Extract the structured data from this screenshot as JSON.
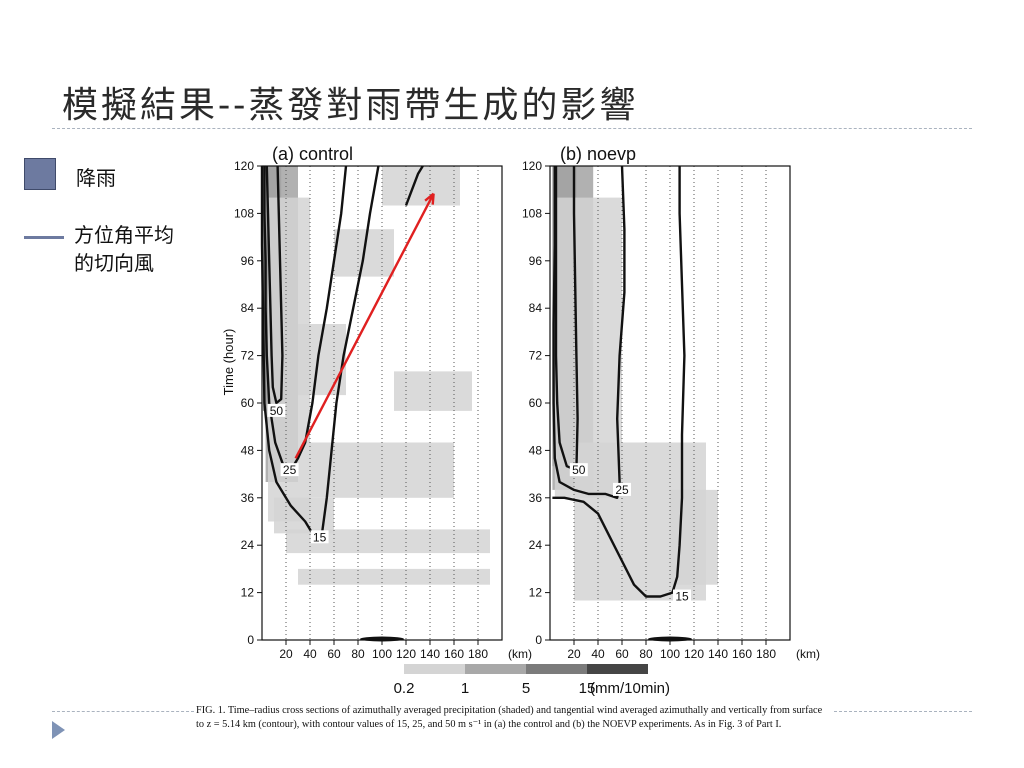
{
  "slide": {
    "title": "模擬結果--蒸發對雨帶生成的影響",
    "legend": {
      "precip_label": "降雨",
      "wind_label_line1": "方位角平均",
      "wind_label_line2": "的切向風",
      "precip_color": "#6d7aa0",
      "wind_color": "#6d7aa0"
    },
    "caption": {
      "prefix": "FIG. 1.",
      "body": "Time–radius cross sections of azimuthally averaged precipitation (shaded) and tangential wind averaged azimuthally and vertically from surface to z = 5.14 km (contour), with contour values of 15, 25, and 50 m s⁻¹ in (a) the control and (b) the NOEVP experiments. As in Fig. 3 of Part I."
    },
    "nav_icon": "next-triangle-icon"
  },
  "chart_data": [
    {
      "type": "heatmap",
      "panel_label": "(a)",
      "title": "control",
      "xlabel": "",
      "ylabel": "Time (hour)",
      "x_unit": "(km)",
      "xlim": [
        0,
        200
      ],
      "ylim": [
        0,
        120
      ],
      "x_ticks": [
        20,
        40,
        60,
        80,
        100,
        120,
        140,
        160,
        180
      ],
      "y_ticks": [
        0,
        12,
        24,
        36,
        48,
        60,
        72,
        84,
        96,
        108,
        120
      ],
      "contour_labels": [
        {
          "value": "50",
          "x": 12,
          "y": 58
        },
        {
          "value": "25",
          "x": 23,
          "y": 43
        },
        {
          "value": "15",
          "x": 48,
          "y": 26
        }
      ],
      "contours": [
        {
          "level": 50,
          "points": [
            [
              4,
              120
            ],
            [
              5,
              108
            ],
            [
              6,
              96
            ],
            [
              7,
              84
            ],
            [
              8,
              72
            ],
            [
              9,
              64
            ],
            [
              12,
              60
            ],
            [
              16,
              61
            ],
            [
              17,
              72
            ],
            [
              16,
              84
            ],
            [
              15,
              96
            ],
            [
              14,
              108
            ],
            [
              13,
              120
            ]
          ]
        },
        {
          "level": 25,
          "points": [
            [
              2,
              120
            ],
            [
              2,
              108
            ],
            [
              3,
              96
            ],
            [
              3,
              84
            ],
            [
              4,
              72
            ],
            [
              6,
              60
            ],
            [
              11,
              50
            ],
            [
              18,
              44
            ],
            [
              24,
              43
            ],
            [
              30,
              46
            ],
            [
              36,
              50
            ],
            [
              42,
              60
            ],
            [
              47,
              72
            ],
            [
              54,
              84
            ],
            [
              60,
              96
            ],
            [
              66,
              108
            ],
            [
              70,
              120
            ]
          ]
        },
        {
          "level": 15,
          "points": [
            [
              0,
              120
            ],
            [
              0,
              100
            ],
            [
              1,
              80
            ],
            [
              2,
              60
            ],
            [
              6,
              48
            ],
            [
              12,
              40
            ],
            [
              24,
              34
            ],
            [
              36,
              30
            ],
            [
              42,
              27
            ],
            [
              50,
              27
            ],
            [
              54,
              36
            ],
            [
              58,
              48
            ],
            [
              62,
              60
            ],
            [
              68,
              72
            ],
            [
              76,
              84
            ],
            [
              84,
              96
            ],
            [
              90,
              108
            ],
            [
              97,
              120
            ]
          ]
        },
        {
          "level": 15,
          "points": [
            [
              120,
              110
            ],
            [
              125,
              114
            ],
            [
              130,
              118
            ],
            [
              134,
              120
            ]
          ]
        }
      ],
      "shading": [
        {
          "band": "heavy",
          "x0": 1,
          "x1": 16,
          "y0": 58,
          "y1": 120
        },
        {
          "band": "mid",
          "x0": 3,
          "x1": 30,
          "y0": 40,
          "y1": 120
        },
        {
          "band": "light",
          "x0": 5,
          "x1": 40,
          "y0": 30,
          "y1": 112
        },
        {
          "band": "light",
          "x0": 30,
          "x1": 70,
          "y0": 62,
          "y1": 80
        },
        {
          "band": "light",
          "x0": 60,
          "x1": 110,
          "y0": 92,
          "y1": 104
        },
        {
          "band": "light",
          "x0": 100,
          "x1": 165,
          "y0": 110,
          "y1": 120
        },
        {
          "band": "light",
          "x0": 110,
          "x1": 175,
          "y0": 58,
          "y1": 68
        },
        {
          "band": "light",
          "x0": 40,
          "x1": 160,
          "y0": 36,
          "y1": 50
        },
        {
          "band": "light",
          "x0": 20,
          "x1": 190,
          "y0": 22,
          "y1": 28
        },
        {
          "band": "light",
          "x0": 30,
          "x1": 190,
          "y0": 14,
          "y1": 18
        },
        {
          "band": "light",
          "x0": 10,
          "x1": 60,
          "y0": 27,
          "y1": 36
        }
      ],
      "annotation_arrow": {
        "from": [
          28,
          46
        ],
        "to": [
          143,
          113
        ],
        "color": "#e02020"
      }
    },
    {
      "type": "heatmap",
      "panel_label": "(b)",
      "title": "noevp",
      "xlabel": "",
      "ylabel": "",
      "x_unit": "(km)",
      "xlim": [
        0,
        200
      ],
      "ylim": [
        0,
        120
      ],
      "x_ticks": [
        20,
        40,
        60,
        80,
        100,
        120,
        140,
        160,
        180
      ],
      "y_ticks": [
        0,
        12,
        24,
        36,
        48,
        60,
        72,
        84,
        96,
        108,
        120
      ],
      "contour_labels": [
        {
          "value": "50",
          "x": 24,
          "y": 43
        },
        {
          "value": "25",
          "x": 60,
          "y": 38
        },
        {
          "value": "15",
          "x": 110,
          "y": 11
        }
      ],
      "contours": [
        {
          "level": 50,
          "points": [
            [
              5,
              120
            ],
            [
              5,
              108
            ],
            [
              5,
              96
            ],
            [
              5,
              84
            ],
            [
              5,
              72
            ],
            [
              6,
              60
            ],
            [
              8,
              50
            ],
            [
              14,
              44
            ],
            [
              22,
              43
            ],
            [
              23,
              56
            ],
            [
              22,
              72
            ],
            [
              21,
              90
            ],
            [
              20,
              108
            ],
            [
              20,
              120
            ]
          ]
        },
        {
          "level": 25,
          "points": [
            [
              4,
              120
            ],
            [
              4,
              100
            ],
            [
              3,
              80
            ],
            [
              3,
              60
            ],
            [
              4,
              46
            ],
            [
              8,
              40
            ],
            [
              20,
              38
            ],
            [
              32,
              37
            ],
            [
              46,
              37
            ],
            [
              56,
              36
            ],
            [
              58,
              40
            ],
            [
              56,
              56
            ],
            [
              58,
              72
            ],
            [
              62,
              88
            ],
            [
              62,
              104
            ],
            [
              60,
              120
            ]
          ]
        },
        {
          "level": 15,
          "points": [
            [
              2,
              36
            ],
            [
              12,
              36
            ],
            [
              28,
              35
            ],
            [
              40,
              32
            ],
            [
              50,
              26
            ],
            [
              60,
              20
            ],
            [
              70,
              14
            ],
            [
              80,
              11
            ],
            [
              92,
              11
            ],
            [
              102,
              12
            ],
            [
              106,
              16
            ],
            [
              108,
              24
            ],
            [
              110,
              36
            ],
            [
              110,
              52
            ],
            [
              112,
              72
            ],
            [
              110,
              90
            ],
            [
              108,
              108
            ],
            [
              108,
              120
            ]
          ]
        }
      ],
      "shading": [
        {
          "band": "heavy",
          "x0": 2,
          "x1": 22,
          "y0": 44,
          "y1": 120
        },
        {
          "band": "mid",
          "x0": 2,
          "x1": 36,
          "y0": 38,
          "y1": 120
        },
        {
          "band": "light",
          "x0": 4,
          "x1": 60,
          "y0": 36,
          "y1": 112
        },
        {
          "band": "light",
          "x0": 20,
          "x1": 130,
          "y0": 10,
          "y1": 50
        },
        {
          "band": "light",
          "x0": 100,
          "x1": 140,
          "y0": 14,
          "y1": 38
        }
      ]
    }
  ],
  "colorbar": {
    "labels": [
      "0.2",
      "1",
      "5",
      "15"
    ],
    "unit": "(mm/10min)",
    "colors": [
      "#d4d4d4",
      "#a8a8a8",
      "#7b7b7b",
      "#454545"
    ]
  }
}
